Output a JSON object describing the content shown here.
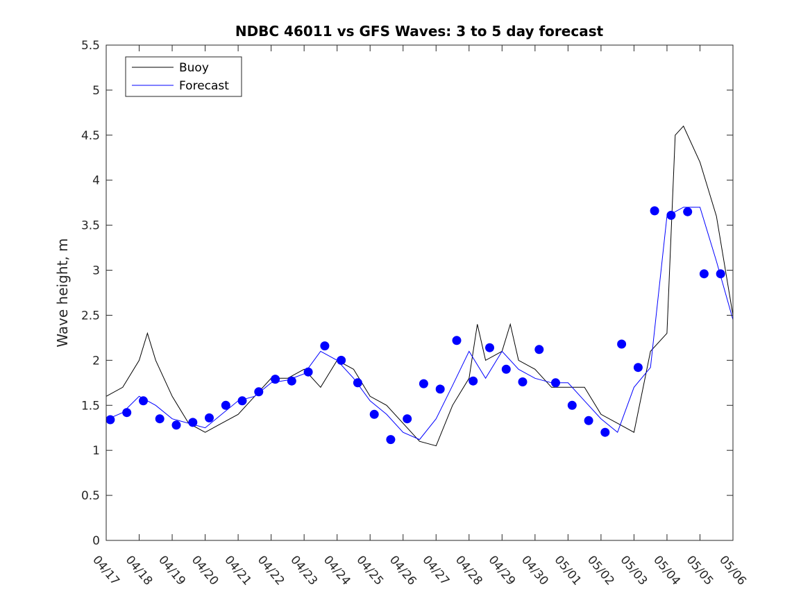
{
  "chart_data": {
    "type": "line",
    "title": "NDBC 46011 vs GFS Waves: 3 to 5 day forecast",
    "xlabel": "",
    "ylabel": "Wave height, m",
    "xlim": [
      "04/17",
      "05/06"
    ],
    "ylim": [
      0,
      5.5
    ],
    "y_ticks": [
      0,
      0.5,
      1,
      1.5,
      2,
      2.5,
      3,
      3.5,
      4,
      4.5,
      5,
      5.5
    ],
    "x_ticks": [
      "04/17",
      "04/18",
      "04/19",
      "04/20",
      "04/21",
      "04/22",
      "04/23",
      "04/24",
      "04/25",
      "04/26",
      "04/27",
      "04/28",
      "04/29",
      "04/30",
      "05/01",
      "05/02",
      "05/03",
      "05/04",
      "05/05",
      "05/06"
    ],
    "grid": false,
    "legend_position": "top-left",
    "colors": {
      "buoy": "#000000",
      "forecast": "#0000ff"
    },
    "series": [
      {
        "name": "Buoy",
        "x": [
          "04/17 00:00",
          "04/17 12:00",
          "04/18 00:00",
          "04/18 06:00",
          "04/18 12:00",
          "04/19 00:00",
          "04/19 12:00",
          "04/20 00:00",
          "04/20 12:00",
          "04/21 00:00",
          "04/21 12:00",
          "04/22 00:00",
          "04/22 12:00",
          "04/23 00:00",
          "04/23 12:00",
          "04/24 00:00",
          "04/24 12:00",
          "04/25 00:00",
          "04/25 12:00",
          "04/26 00:00",
          "04/26 12:00",
          "04/27 00:00",
          "04/27 12:00",
          "04/28 00:00",
          "04/28 06:00",
          "04/28 12:00",
          "04/29 00:00",
          "04/29 06:00",
          "04/29 12:00",
          "04/30 00:00",
          "04/30 12:00",
          "05/01 00:00",
          "05/01 12:00",
          "05/02 00:00",
          "05/02 12:00",
          "05/03 00:00",
          "05/03 12:00",
          "05/04 00:00",
          "05/04 06:00",
          "05/04 12:00",
          "05/05 00:00",
          "05/05 12:00",
          "05/06 00:00"
        ],
        "values": [
          1.6,
          1.7,
          2.0,
          2.3,
          2.0,
          1.6,
          1.3,
          1.2,
          1.3,
          1.4,
          1.6,
          1.8,
          1.8,
          1.9,
          1.7,
          2.0,
          1.9,
          1.6,
          1.5,
          1.3,
          1.1,
          1.05,
          1.5,
          1.8,
          2.4,
          2.0,
          2.1,
          2.4,
          2.0,
          1.9,
          1.7,
          1.7,
          1.7,
          1.4,
          1.3,
          1.2,
          2.1,
          2.3,
          4.5,
          4.6,
          4.2,
          3.6,
          2.5
        ]
      },
      {
        "name": "Forecast",
        "x": [
          "04/17 00:00",
          "04/17 12:00",
          "04/18 00:00",
          "04/18 12:00",
          "04/19 00:00",
          "04/19 12:00",
          "04/20 00:00",
          "04/20 12:00",
          "04/21 00:00",
          "04/21 12:00",
          "04/22 00:00",
          "04/22 12:00",
          "04/23 00:00",
          "04/23 12:00",
          "04/24 00:00",
          "04/24 12:00",
          "04/25 00:00",
          "04/25 12:00",
          "04/26 00:00",
          "04/26 12:00",
          "04/27 00:00",
          "04/27 12:00",
          "04/28 00:00",
          "04/28 12:00",
          "04/29 00:00",
          "04/29 12:00",
          "04/30 00:00",
          "04/30 12:00",
          "05/01 00:00",
          "05/01 12:00",
          "05/02 00:00",
          "05/02 12:00",
          "05/03 00:00",
          "05/03 12:00",
          "05/04 00:00",
          "05/04 12:00",
          "05/05 00:00",
          "05/05 12:00",
          "05/06 00:00"
        ],
        "values": [
          1.34,
          1.42,
          1.6,
          1.5,
          1.35,
          1.3,
          1.25,
          1.4,
          1.55,
          1.6,
          1.75,
          1.78,
          1.85,
          2.1,
          2.0,
          1.8,
          1.55,
          1.4,
          1.2,
          1.12,
          1.35,
          1.72,
          2.1,
          1.8,
          2.1,
          1.9,
          1.8,
          1.75,
          1.75,
          1.55,
          1.35,
          1.2,
          1.7,
          1.92,
          3.6,
          3.7,
          3.7,
          3.1,
          2.45
        ]
      }
    ],
    "markers": {
      "x": [
        "04/17 03:00",
        "04/17 15:00",
        "04/18 03:00",
        "04/18 15:00",
        "04/19 03:00",
        "04/19 15:00",
        "04/20 03:00",
        "04/20 15:00",
        "04/21 03:00",
        "04/21 15:00",
        "04/22 03:00",
        "04/22 15:00",
        "04/23 03:00",
        "04/23 15:00",
        "04/24 03:00",
        "04/24 15:00",
        "04/25 03:00",
        "04/25 15:00",
        "04/26 03:00",
        "04/26 15:00",
        "04/27 03:00",
        "04/27 15:00",
        "04/28 03:00",
        "04/28 15:00",
        "04/29 03:00",
        "04/29 15:00",
        "04/30 03:00",
        "04/30 15:00",
        "05/01 03:00",
        "05/01 15:00",
        "05/02 03:00",
        "05/02 15:00",
        "05/03 03:00",
        "05/03 15:00",
        "05/04 03:00",
        "05/04 15:00",
        "05/05 03:00",
        "05/05 15:00"
      ],
      "values": [
        1.34,
        1.42,
        1.55,
        1.35,
        1.28,
        1.31,
        1.36,
        1.5,
        1.55,
        1.65,
        1.79,
        1.77,
        1.87,
        2.16,
        2.0,
        1.75,
        1.4,
        1.12,
        1.35,
        1.74,
        1.68,
        2.22,
        1.77,
        2.14,
        1.9,
        1.76,
        2.12,
        1.75,
        1.5,
        1.33,
        1.2,
        2.18,
        1.92,
        3.66,
        3.61,
        3.65,
        2.96,
        2.96
      ]
    }
  }
}
